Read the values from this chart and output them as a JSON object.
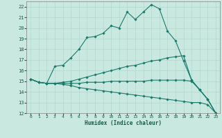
{
  "xlabel": "Humidex (Indice chaleur)",
  "ylabel": "",
  "background_color": "#c8e8e0",
  "grid_color": "#b0d8d0",
  "line_color": "#1a7a6a",
  "xlim": [
    -0.5,
    23.5
  ],
  "ylim": [
    12,
    22.5
  ],
  "yticks": [
    12,
    13,
    14,
    15,
    16,
    17,
    18,
    19,
    20,
    21,
    22
  ],
  "xticks": [
    0,
    1,
    2,
    3,
    4,
    5,
    6,
    7,
    8,
    9,
    10,
    11,
    12,
    13,
    14,
    15,
    16,
    17,
    18,
    19,
    20,
    21,
    22,
    23
  ],
  "series": [
    {
      "x": [
        0,
        1,
        2,
        3,
        4,
        5,
        6,
        7,
        8,
        9,
        10,
        11,
        12,
        13,
        14,
        15,
        16,
        17,
        18,
        19,
        20,
        21,
        22,
        23
      ],
      "y": [
        15.2,
        14.9,
        14.8,
        16.4,
        16.5,
        17.2,
        18.0,
        19.1,
        19.2,
        19.5,
        20.2,
        20.0,
        21.5,
        20.8,
        21.5,
        22.2,
        21.8,
        19.7,
        18.8,
        16.9,
        15.1,
        14.2,
        13.3,
        12.0
      ]
    },
    {
      "x": [
        0,
        1,
        2,
        3,
        4,
        5,
        6,
        7,
        8,
        9,
        10,
        11,
        12,
        13,
        14,
        15,
        16,
        17,
        18,
        19,
        20,
        21,
        22,
        23
      ],
      "y": [
        15.2,
        14.9,
        14.8,
        14.8,
        14.9,
        15.0,
        15.2,
        15.4,
        15.6,
        15.8,
        16.0,
        16.2,
        16.4,
        16.5,
        16.7,
        16.9,
        17.0,
        17.2,
        17.3,
        17.4,
        15.1,
        14.2,
        13.3,
        12.0
      ]
    },
    {
      "x": [
        0,
        1,
        2,
        3,
        4,
        5,
        6,
        7,
        8,
        9,
        10,
        11,
        12,
        13,
        14,
        15,
        16,
        17,
        18,
        19,
        20,
        21,
        22,
        23
      ],
      "y": [
        15.2,
        14.9,
        14.8,
        14.8,
        14.8,
        14.8,
        14.8,
        14.9,
        14.9,
        14.9,
        15.0,
        15.0,
        15.0,
        15.0,
        15.0,
        15.1,
        15.1,
        15.1,
        15.1,
        15.1,
        15.0,
        14.2,
        13.3,
        12.0
      ]
    },
    {
      "x": [
        0,
        1,
        2,
        3,
        4,
        5,
        6,
        7,
        8,
        9,
        10,
        11,
        12,
        13,
        14,
        15,
        16,
        17,
        18,
        19,
        20,
        21,
        22,
        23
      ],
      "y": [
        15.2,
        14.9,
        14.8,
        14.8,
        14.7,
        14.6,
        14.4,
        14.3,
        14.2,
        14.1,
        14.0,
        13.9,
        13.8,
        13.7,
        13.6,
        13.5,
        13.4,
        13.3,
        13.2,
        13.1,
        13.0,
        13.0,
        12.8,
        12.0
      ]
    }
  ]
}
